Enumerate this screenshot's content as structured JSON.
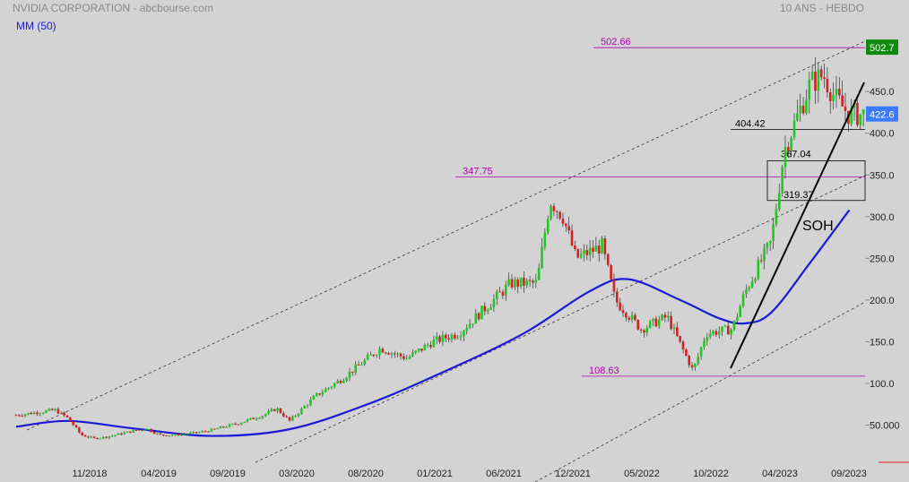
{
  "header": {
    "title": "NVIDIA CORPORATION - abcbourse.com",
    "period": "10 ANS - HEBDO",
    "indicator": "MM (50)"
  },
  "colors": {
    "background": "#d3d3d3",
    "up": "#22c722",
    "down": "#d62020",
    "ma": "#1a1ad6",
    "level": "#b000b0",
    "last_price": "#3a7bff",
    "high_price": "#0f8a0f"
  },
  "chart_data": {
    "type": "candlestick",
    "x_ticks": [
      "11/2018",
      "04/2019",
      "09/2019",
      "03/2020",
      "08/2020",
      "01/2021",
      "06/2021",
      "12/2021",
      "05/2022",
      "10/2022",
      "04/2023",
      "09/2023"
    ],
    "y_ticks": [
      "50.000",
      "100.0",
      "150.0",
      "200.0",
      "250.0",
      "300.0",
      "350.0",
      "400.0",
      "450.0"
    ],
    "ylim": [
      20,
      530
    ],
    "last_price": "422.6",
    "high_price": "502.7",
    "levels": [
      {
        "label": "502.66",
        "value": 502.66
      },
      {
        "label": "347.75",
        "value": 347.75
      },
      {
        "label": "108.63",
        "value": 108.63
      }
    ],
    "zone": {
      "top_label": "367.04",
      "top": 367.04,
      "bottom_label": "319.37",
      "bottom": 319.37
    },
    "support_label": "404.42",
    "support": 404.42,
    "annotation": "SOH",
    "price_path": [
      [
        "2018-06",
        62
      ],
      [
        "2018-09",
        68
      ],
      [
        "2018-10",
        58
      ],
      [
        "2018-11",
        38
      ],
      [
        "2018-12",
        34
      ],
      [
        "2019-01",
        36
      ],
      [
        "2019-03",
        43
      ],
      [
        "2019-04",
        46
      ],
      [
        "2019-05",
        38
      ],
      [
        "2019-06",
        38
      ],
      [
        "2019-08",
        41
      ],
      [
        "2019-09",
        44
      ],
      [
        "2019-11",
        52
      ],
      [
        "2020-01",
        62
      ],
      [
        "2020-02",
        70
      ],
      [
        "2020-03",
        55
      ],
      [
        "2020-05",
        85
      ],
      [
        "2020-07",
        105
      ],
      [
        "2020-09",
        130
      ],
      [
        "2020-10",
        142
      ],
      [
        "2020-12",
        130
      ],
      [
        "2021-02",
        150
      ],
      [
        "2021-04",
        160
      ],
      [
        "2021-06",
        190
      ],
      [
        "2021-08",
        220
      ],
      [
        "2021-10",
        220
      ],
      [
        "2021-11",
        320
      ],
      [
        "2021-12",
        300
      ],
      [
        "2022-01",
        250
      ],
      [
        "2022-03",
        265
      ],
      [
        "2022-04",
        200
      ],
      [
        "2022-06",
        165
      ],
      [
        "2022-08",
        180
      ],
      [
        "2022-10",
        115
      ],
      [
        "2022-11",
        160
      ],
      [
        "2023-01",
        165
      ],
      [
        "2023-02",
        210
      ],
      [
        "2023-04",
        270
      ],
      [
        "2023-05",
        380
      ],
      [
        "2023-06",
        420
      ],
      [
        "2023-07",
        460
      ],
      [
        "2023-08",
        470
      ],
      [
        "2023-09",
        440
      ],
      [
        "2023-10",
        422.6
      ]
    ],
    "ma_path": [
      [
        "2018-06",
        48
      ],
      [
        "2018-10",
        55
      ],
      [
        "2019-03",
        46
      ],
      [
        "2019-09",
        37
      ],
      [
        "2020-03",
        45
      ],
      [
        "2020-09",
        75
      ],
      [
        "2021-03",
        115
      ],
      [
        "2021-09",
        160
      ],
      [
        "2022-02",
        210
      ],
      [
        "2022-05",
        225
      ],
      [
        "2022-09",
        200
      ],
      [
        "2022-12",
        178
      ],
      [
        "2023-02",
        172
      ],
      [
        "2023-04",
        185
      ],
      [
        "2023-07",
        245
      ],
      [
        "2023-10",
        308
      ]
    ]
  }
}
